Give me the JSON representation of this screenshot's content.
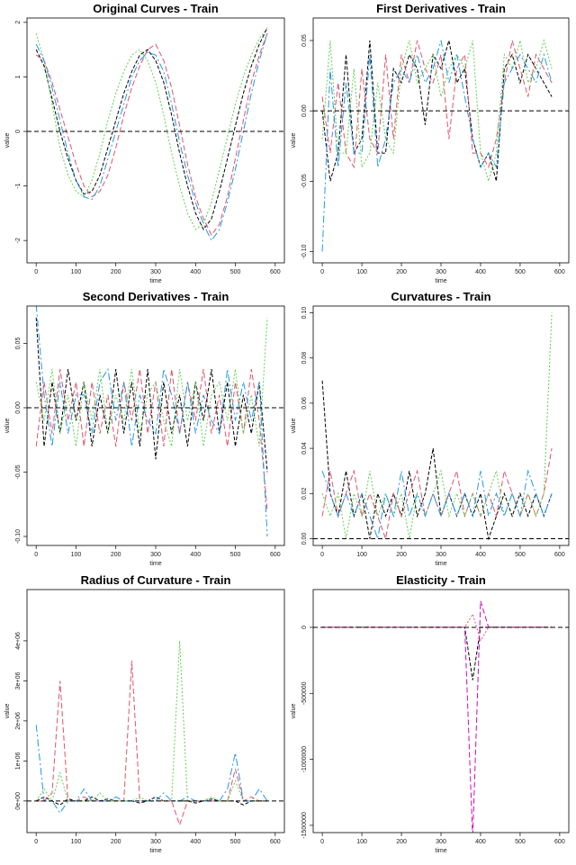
{
  "chart_data": [
    {
      "type": "line",
      "title": "Original Curves - Train",
      "x_label": "time",
      "y_label": "value",
      "hline": 0,
      "x": [
        0,
        20,
        40,
        60,
        80,
        100,
        120,
        140,
        160,
        180,
        200,
        220,
        240,
        260,
        280,
        300,
        320,
        340,
        360,
        380,
        400,
        420,
        440,
        460,
        480,
        500,
        520,
        540,
        560,
        580
      ],
      "xlim": [
        -23,
        623
      ],
      "xticks": [
        0,
        100,
        200,
        300,
        400,
        500,
        600
      ],
      "ylim": [
        -2.41,
        2.08
      ],
      "yticks": [
        -2,
        -1,
        0,
        1,
        2
      ],
      "series": [
        {
          "color": "#000000",
          "values": [
            1.5,
            1.2,
            0.6,
            0,
            -0.5,
            -0.9,
            -1.15,
            -1.1,
            -0.8,
            -0.3,
            0.2,
            0.7,
            1.1,
            1.4,
            1.5,
            1.3,
            0.9,
            0.3,
            -0.4,
            -1.0,
            -1.5,
            -1.8,
            -1.6,
            -1.1,
            -0.5,
            0.1,
            0.7,
            1.2,
            1.6,
            1.9
          ]
        },
        {
          "color": "#df536b",
          "values": [
            1.4,
            1.3,
            0.9,
            0.4,
            -0.1,
            -0.6,
            -1.0,
            -1.2,
            -1.1,
            -0.8,
            -0.3,
            0.3,
            0.8,
            1.2,
            1.5,
            1.6,
            1.3,
            0.8,
            0.1,
            -0.6,
            -1.2,
            -1.6,
            -1.9,
            -1.7,
            -1.2,
            -0.5,
            0.2,
            0.9,
            1.4,
            1.8
          ]
        },
        {
          "color": "#61d04f",
          "values": [
            1.8,
            1.3,
            0.5,
            -0.3,
            -0.8,
            -1.1,
            -1.2,
            -0.9,
            -0.4,
            0.2,
            0.7,
            1.1,
            1.4,
            1.5,
            1.3,
            0.9,
            0.3,
            -0.4,
            -1.0,
            -1.5,
            -1.8,
            -1.7,
            -1.3,
            -0.7,
            -0.1,
            0.5,
            1.0,
            1.4,
            1.7,
            1.9
          ]
        },
        {
          "color": "#2297e6",
          "values": [
            1.6,
            1.3,
            0.8,
            0.2,
            -0.4,
            -0.9,
            -1.2,
            -1.25,
            -1.0,
            -0.5,
            0.0,
            0.5,
            1.0,
            1.3,
            1.45,
            1.4,
            1.1,
            0.5,
            -0.2,
            -0.8,
            -1.3,
            -1.7,
            -2.0,
            -1.8,
            -1.3,
            -0.7,
            0.0,
            0.7,
            1.3,
            1.8
          ]
        }
      ]
    },
    {
      "type": "line",
      "title": "First Derivatives - Train",
      "x_label": "time",
      "y_label": "value",
      "hline": 0,
      "x": [
        0,
        20,
        40,
        60,
        80,
        100,
        120,
        140,
        160,
        180,
        200,
        220,
        240,
        260,
        280,
        300,
        320,
        340,
        360,
        380,
        400,
        420,
        440,
        460,
        480,
        500,
        520,
        540,
        560,
        580
      ],
      "xlim": [
        -23,
        623
      ],
      "xticks": [
        0,
        100,
        200,
        300,
        400,
        500,
        600
      ],
      "ylim": [
        -0.108,
        0.066
      ],
      "yticks": [
        {
          "value": -0.1,
          "label": "-0.10"
        },
        -0.05,
        {
          "value": 0,
          "label": "0.00"
        },
        0.05
      ],
      "series": [
        {
          "color": "#000000",
          "values": [
            0.0,
            -0.05,
            -0.03,
            0.04,
            -0.03,
            -0.02,
            0.05,
            -0.03,
            -0.03,
            0.03,
            0.02,
            0.04,
            0.03,
            -0.01,
            0.04,
            0.03,
            0.05,
            0.02,
            0.03,
            -0.02,
            -0.04,
            -0.03,
            -0.05,
            0.03,
            0.04,
            0.02,
            0.04,
            0.03,
            0.02,
            0.01
          ]
        },
        {
          "color": "#df536b",
          "values": [
            0.01,
            -0.03,
            0.02,
            -0.03,
            -0.04,
            0.03,
            -0.02,
            -0.03,
            0.04,
            -0.02,
            0.04,
            0.02,
            0.05,
            0.03,
            0.02,
            0.04,
            -0.02,
            0.03,
            0.04,
            -0.03,
            -0.03,
            -0.04,
            -0.02,
            0.02,
            0.05,
            0.03,
            0.01,
            0.04,
            0.03,
            0.02
          ]
        },
        {
          "color": "#61d04f",
          "values": [
            -0.02,
            0.05,
            -0.03,
            -0.03,
            0.03,
            -0.04,
            -0.03,
            0.02,
            -0.02,
            -0.03,
            0.03,
            0.05,
            0.02,
            0.03,
            0.04,
            0.01,
            0.03,
            0.04,
            0.03,
            0.05,
            -0.03,
            -0.05,
            -0.03,
            0.04,
            0.03,
            0.05,
            0.02,
            0.03,
            0.05,
            0.03
          ]
        },
        {
          "color": "#2297e6",
          "values": [
            -0.1,
            0.03,
            -0.04,
            0.02,
            -0.03,
            -0.03,
            0.04,
            -0.04,
            -0.02,
            0.02,
            0.03,
            0.02,
            0.04,
            0.02,
            0.03,
            0.05,
            0.02,
            0.04,
            0.01,
            -0.02,
            -0.04,
            -0.03,
            -0.04,
            0.02,
            0.03,
            0.04,
            0.03,
            0.02,
            0.04,
            0.02
          ]
        }
      ]
    },
    {
      "type": "line",
      "title": "Second Derivatives - Train",
      "x_label": "time",
      "y_label": "value",
      "hline": 0,
      "x": [
        0,
        20,
        40,
        60,
        80,
        100,
        120,
        140,
        160,
        180,
        200,
        220,
        240,
        260,
        280,
        300,
        320,
        340,
        360,
        380,
        400,
        420,
        440,
        460,
        480,
        500,
        520,
        540,
        560,
        580
      ],
      "xlim": [
        -23,
        623
      ],
      "xticks": [
        0,
        100,
        200,
        300,
        400,
        500,
        600
      ],
      "ylim": [
        -0.107,
        0.079
      ],
      "yticks": [
        {
          "value": -0.1,
          "label": "-0.10"
        },
        -0.05,
        {
          "value": 0,
          "label": "0.00"
        },
        0.05
      ],
      "series": [
        {
          "color": "#000000",
          "values": [
            0.07,
            -0.03,
            0.02,
            -0.02,
            0.03,
            -0.01,
            0.02,
            -0.03,
            0.01,
            -0.02,
            0.03,
            -0.02,
            0.02,
            -0.03,
            0.03,
            -0.04,
            0.02,
            -0.02,
            0.01,
            -0.03,
            0.02,
            -0.01,
            0.03,
            -0.02,
            0.02,
            -0.03,
            0.01,
            -0.02,
            0.02,
            -0.05
          ]
        },
        {
          "color": "#df536b",
          "values": [
            -0.03,
            0.02,
            -0.02,
            0.03,
            -0.01,
            0.02,
            -0.03,
            0.02,
            -0.02,
            0.01,
            -0.03,
            0.02,
            -0.01,
            0.03,
            -0.02,
            0.02,
            -0.03,
            0.03,
            -0.02,
            0.02,
            -0.01,
            0.03,
            -0.02,
            0.01,
            -0.03,
            0.02,
            -0.02,
            0.03,
            -0.01,
            -0.08
          ]
        },
        {
          "color": "#61d04f",
          "values": [
            0.02,
            -0.01,
            0.03,
            -0.02,
            0.01,
            -0.03,
            0.02,
            -0.01,
            0.03,
            -0.02,
            0.01,
            -0.01,
            0.03,
            -0.02,
            0.01,
            0.02,
            -0.01,
            -0.03,
            0.03,
            -0.01,
            0.02,
            -0.03,
            0.01,
            0.02,
            -0.01,
            0.03,
            -0.02,
            0.01,
            -0.03,
            0.07
          ]
        },
        {
          "color": "#2297e6",
          "values": [
            0.08,
            0.01,
            -0.03,
            0.02,
            -0.02,
            0.01,
            0.01,
            -0.02,
            0.02,
            0.03,
            -0.01,
            0.02,
            -0.03,
            0.01,
            -0.01,
            -0.02,
            0.03,
            0.01,
            -0.02,
            0.02,
            -0.02,
            0.01,
            -0.01,
            -0.02,
            0.03,
            -0.01,
            0.02,
            -0.01,
            0.02,
            -0.1
          ]
        }
      ]
    },
    {
      "type": "line",
      "title": "Curvatures - Train",
      "x_label": "time",
      "y_label": "value",
      "hline": 0,
      "x": [
        0,
        20,
        40,
        60,
        80,
        100,
        120,
        140,
        160,
        180,
        200,
        220,
        240,
        260,
        280,
        300,
        320,
        340,
        360,
        380,
        400,
        420,
        440,
        460,
        480,
        500,
        520,
        540,
        560,
        580
      ],
      "xlim": [
        -23,
        623
      ],
      "xticks": [
        0,
        100,
        200,
        300,
        400,
        500,
        600
      ],
      "ylim": [
        -0.003,
        0.103
      ],
      "yticks": [
        {
          "value": 0,
          "label": "0.00"
        },
        0.02,
        0.04,
        0.06,
        0.08,
        {
          "value": 0.1,
          "label": "0.10"
        }
      ],
      "series": [
        {
          "color": "#000000",
          "values": [
            0.07,
            0.02,
            0.01,
            0.03,
            0.01,
            0.02,
            0.0,
            0.02,
            0.01,
            0.02,
            0.01,
            0.03,
            0.01,
            0.02,
            0.04,
            0.01,
            0.02,
            0.01,
            0.02,
            0.01,
            0.02,
            0.0,
            0.01,
            0.02,
            0.01,
            0.02,
            0.01,
            0.02,
            0.01,
            0.02
          ]
        },
        {
          "color": "#df536b",
          "values": [
            0.01,
            0.03,
            0.01,
            0.02,
            0.03,
            0.01,
            0.02,
            0.01,
            0.0,
            0.02,
            0.01,
            0.02,
            0.03,
            0.01,
            0.02,
            0.01,
            0.02,
            0.03,
            0.01,
            0.02,
            0.01,
            0.02,
            0.01,
            0.03,
            0.02,
            0.01,
            0.02,
            0.01,
            0.02,
            0.04
          ]
        },
        {
          "color": "#61d04f",
          "values": [
            0.02,
            0.01,
            0.02,
            0.0,
            0.02,
            0.01,
            0.03,
            0.01,
            0.02,
            0.01,
            0.02,
            0.0,
            0.02,
            0.01,
            0.02,
            0.03,
            0.01,
            0.02,
            0.01,
            0.02,
            0.01,
            0.02,
            0.03,
            0.01,
            0.02,
            0.01,
            0.02,
            0.01,
            0.02,
            0.1
          ]
        },
        {
          "color": "#2297e6",
          "values": [
            0.03,
            0.02,
            0.01,
            0.02,
            0.01,
            0.02,
            0.01,
            0.0,
            0.02,
            0.01,
            0.03,
            0.01,
            0.02,
            0.01,
            0.02,
            0.01,
            0.02,
            0.01,
            0.02,
            0.01,
            0.03,
            0.01,
            0.02,
            0.01,
            0.02,
            0.01,
            0.03,
            0.02,
            0.01,
            0.02
          ]
        }
      ]
    },
    {
      "type": "line",
      "title": "Radius of Curvature - Train",
      "x_label": "time",
      "y_label": "value",
      "hline": 0,
      "x": [
        0,
        20,
        40,
        60,
        80,
        100,
        120,
        140,
        160,
        180,
        200,
        220,
        240,
        260,
        280,
        300,
        320,
        340,
        360,
        380,
        400,
        420,
        440,
        460,
        480,
        500,
        520,
        540,
        560,
        580
      ],
      "xlim": [
        -23,
        623
      ],
      "xticks": [
        0,
        100,
        200,
        300,
        400,
        500,
        600
      ],
      "ylim": [
        -790000,
        5280000
      ],
      "yticks": [
        {
          "value": 0,
          "label": "0e+00"
        },
        {
          "value": 1000000,
          "label": "1e+06"
        },
        {
          "value": 2000000,
          "label": "2e+06"
        },
        {
          "value": 3000000,
          "label": "3e+06"
        },
        {
          "value": 4000000,
          "label": "4e+06"
        }
      ],
      "series": [
        {
          "color": "#000000",
          "values": [
            0,
            100000,
            0,
            -100000,
            50000,
            0,
            0,
            100000,
            0,
            50000,
            0,
            0,
            0,
            -50000,
            0,
            100000,
            0,
            0,
            0,
            0,
            -50000,
            0,
            50000,
            0,
            0,
            0,
            -100000,
            0,
            0,
            0
          ]
        },
        {
          "color": "#df536b",
          "values": [
            0,
            0,
            200000,
            3000000,
            0,
            0,
            100000,
            0,
            0,
            0,
            0,
            0,
            3500000,
            0,
            0,
            0,
            0,
            0,
            -600000,
            0,
            0,
            0,
            0,
            0,
            0,
            800000,
            0,
            100000,
            0,
            0
          ]
        },
        {
          "color": "#61d04f",
          "values": [
            0,
            300000,
            0,
            700000,
            0,
            0,
            0,
            0,
            200000,
            0,
            0,
            0,
            0,
            100000,
            0,
            0,
            0,
            0,
            4000000,
            0,
            0,
            0,
            100000,
            0,
            0,
            500000,
            0,
            0,
            0,
            0
          ]
        },
        {
          "color": "#2297e6",
          "values": [
            1900000,
            0,
            0,
            -300000,
            0,
            0,
            300000,
            0,
            0,
            0,
            100000,
            0,
            0,
            0,
            0,
            0,
            200000,
            0,
            0,
            100000,
            0,
            0,
            0,
            0,
            300000,
            1200000,
            0,
            0,
            300000,
            0
          ]
        }
      ]
    },
    {
      "type": "line",
      "title": "Elasticity - Train",
      "x_label": "time",
      "y_label": "value",
      "hline": 0,
      "x": [
        0,
        20,
        40,
        60,
        80,
        100,
        120,
        140,
        160,
        180,
        200,
        220,
        240,
        260,
        280,
        300,
        320,
        340,
        360,
        380,
        400,
        420,
        440,
        460,
        480,
        500,
        520,
        540,
        560,
        580
      ],
      "xlim": [
        -23,
        623
      ],
      "xticks": [
        0,
        100,
        200,
        300,
        400,
        500,
        600
      ],
      "ylim": [
        -1555000,
        286000
      ],
      "yticks": [
        -1500000,
        -1000000,
        -500000,
        0
      ],
      "series": [
        {
          "color": "#000000",
          "values": [
            0,
            0,
            0,
            0,
            0,
            0,
            0,
            0,
            0,
            0,
            0,
            0,
            0,
            0,
            0,
            0,
            0,
            0,
            0,
            -400000,
            0,
            0,
            0,
            0,
            0,
            0,
            0,
            0,
            0,
            0
          ]
        },
        {
          "color": "#cd0bbc",
          "values": [
            0,
            0,
            0,
            0,
            0,
            0,
            0,
            0,
            0,
            0,
            0,
            0,
            0,
            0,
            0,
            0,
            0,
            0,
            0,
            -1600000,
            200000,
            0,
            0,
            0,
            0,
            0,
            0,
            0,
            0,
            0
          ]
        },
        {
          "color": "#df536b",
          "values": [
            0,
            0,
            0,
            0,
            0,
            0,
            0,
            0,
            0,
            0,
            0,
            0,
            0,
            0,
            0,
            0,
            0,
            0,
            0,
            100000,
            -100000,
            0,
            0,
            0,
            0,
            0,
            0,
            0,
            0,
            0
          ]
        }
      ]
    }
  ]
}
